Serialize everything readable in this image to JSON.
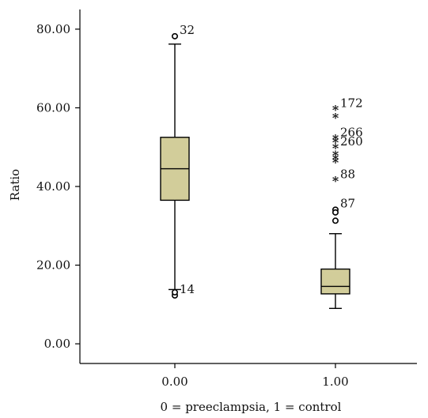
{
  "chart_data": {
    "type": "boxplot",
    "title": "",
    "xlabel": "0 = preeclampsia, 1 = control",
    "ylabel": "Ratio",
    "ylim": [
      -5,
      85
    ],
    "yticks": [
      "0.00",
      "20.00",
      "40.00",
      "60.00",
      "80.00"
    ],
    "categories": [
      "0.00",
      "1.00"
    ],
    "box_color": "#d2cd9a",
    "boxes": [
      {
        "category": "0.00",
        "whisker_low": 13.8,
        "q1": 36.5,
        "median": 44.5,
        "q3": 52.5,
        "whisker_high": 76.2,
        "outliers": [
          {
            "value": 78.2,
            "marker": "circle",
            "label": "32"
          },
          {
            "value": 12.3,
            "marker": "circle",
            "label": "14"
          },
          {
            "value": 13.1,
            "marker": "circle",
            "label": ""
          }
        ]
      },
      {
        "category": "1.00",
        "whisker_low": 9.0,
        "q1": 12.7,
        "median": 14.6,
        "q3": 19.0,
        "whisker_high": 28.0,
        "outliers": [
          {
            "value": 59.6,
            "marker": "star",
            "label": "172"
          },
          {
            "value": 57.6,
            "marker": "star",
            "label": ""
          },
          {
            "value": 52.2,
            "marker": "star",
            "label": "266"
          },
          {
            "value": 51.4,
            "marker": "star",
            "label": ""
          },
          {
            "value": 49.8,
            "marker": "star",
            "label": "260"
          },
          {
            "value": 48.0,
            "marker": "star",
            "label": ""
          },
          {
            "value": 47.0,
            "marker": "star",
            "label": ""
          },
          {
            "value": 46.2,
            "marker": "star",
            "label": ""
          },
          {
            "value": 41.5,
            "marker": "star",
            "label": "88"
          },
          {
            "value": 34.1,
            "marker": "circle",
            "label": "87"
          },
          {
            "value": 33.4,
            "marker": "circle",
            "label": ""
          },
          {
            "value": 31.3,
            "marker": "circle",
            "label": ""
          }
        ]
      }
    ]
  }
}
